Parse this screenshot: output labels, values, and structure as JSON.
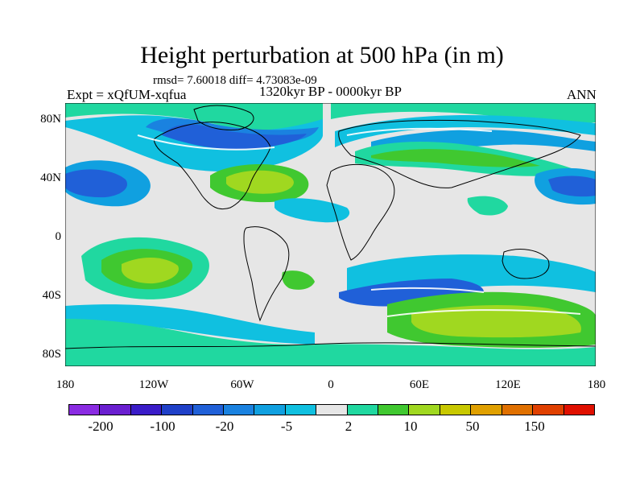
{
  "title": "Height perturbation at 500 hPa (in m)",
  "stats": "rmsd= 7.60018 diff= 4.73083e-09",
  "experiment": "Expt = xQfUM-xqfua",
  "period": "1320kyr BP - 0000kyr BP",
  "season": "ANN",
  "map": {
    "type": "filled-contour",
    "projection": "cylindrical-equidistant",
    "lon_range": [
      -180,
      180
    ],
    "lat_range": [
      -90,
      90
    ],
    "background_color": "#e6e6e6",
    "y_ticks": [
      "80N",
      "40N",
      "0",
      "40S",
      "80S"
    ],
    "x_ticks": [
      "180",
      "120W",
      "60W",
      "0",
      "60E",
      "120E",
      "180"
    ]
  },
  "colorbar": {
    "colors": [
      "#8a2be2",
      "#6a1fd0",
      "#3a1cc8",
      "#1f40c8",
      "#2060d8",
      "#1a82e0",
      "#10a0e0",
      "#10c0e0",
      "#e6e6e6",
      "#20d8a0",
      "#40c830",
      "#a0d820",
      "#c8c800",
      "#e0a000",
      "#e07000",
      "#e04000",
      "#e01000"
    ],
    "labels": [
      "-200",
      "-100",
      "-20",
      "-5",
      "2",
      "10",
      "50",
      "150"
    ]
  }
}
